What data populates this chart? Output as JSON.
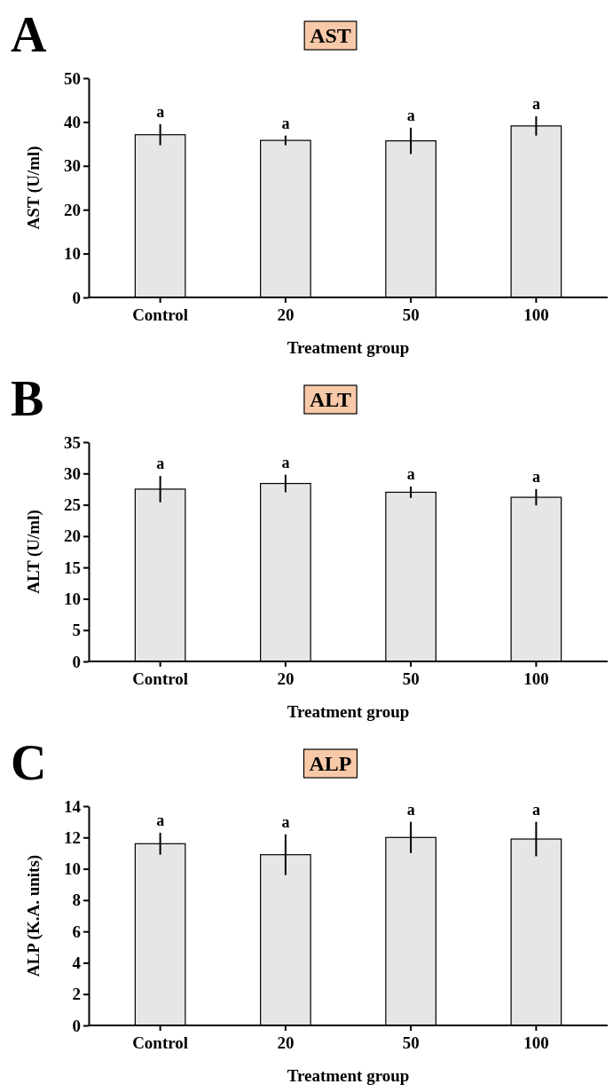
{
  "chart_data": [
    {
      "type": "bar",
      "title": "AST",
      "xlabel": "Treatment group",
      "ylabel": "AST (U/ml)",
      "categories": [
        "Control",
        "20",
        "50",
        "100"
      ],
      "values": [
        37.1,
        35.8,
        35.7,
        39.1
      ],
      "errors": [
        2.4,
        1.1,
        3.0,
        2.2
      ],
      "color": "#e6e6e6",
      "ylim": [
        0,
        50
      ],
      "yticks": [
        0,
        10,
        20,
        30,
        40,
        50
      ],
      "grid": false,
      "annotations": [
        {
          "text": "a",
          "x": "Control",
          "y": 39.5
        },
        {
          "text": "a",
          "x": "20",
          "y": 36.9
        },
        {
          "text": "a",
          "x": "50",
          "y": 38.7
        },
        {
          "text": "a",
          "x": "100",
          "y": 41.3
        },
        "A"
      ]
    },
    {
      "type": "bar",
      "title": "ALT",
      "xlabel": "Treatment group",
      "ylabel": "ALT (U/ml)",
      "categories": [
        "Control",
        "20",
        "50",
        "100"
      ],
      "values": [
        27.5,
        28.4,
        27.0,
        26.2
      ],
      "errors": [
        2.1,
        1.4,
        0.9,
        1.3
      ],
      "color": "#e6e6e6",
      "ylim": [
        0,
        35
      ],
      "yticks": [
        0,
        5,
        10,
        15,
        20,
        25,
        30,
        35
      ],
      "grid": false,
      "annotations": [
        {
          "text": "a",
          "x": "Control",
          "y": 29.6
        },
        {
          "text": "a",
          "x": "20",
          "y": 29.8
        },
        {
          "text": "a",
          "x": "50",
          "y": 27.9
        },
        {
          "text": "a",
          "x": "100",
          "y": 27.5
        },
        "B"
      ]
    },
    {
      "type": "bar",
      "title": "ALP",
      "xlabel": "Treatment group",
      "ylabel": "ALP (K.A. units)",
      "categories": [
        "Control",
        "20",
        "50",
        "100"
      ],
      "values": [
        11.6,
        10.9,
        12.0,
        11.9
      ],
      "errors": [
        0.7,
        1.3,
        1.0,
        1.1
      ],
      "color": "#e6e6e6",
      "ylim": [
        0,
        14
      ],
      "yticks": [
        0,
        2,
        4,
        6,
        8,
        10,
        12,
        14
      ],
      "grid": false,
      "annotations": [
        {
          "text": "a",
          "x": "Control",
          "y": 12.3
        },
        {
          "text": "a",
          "x": "20",
          "y": 12.2
        },
        {
          "text": "a",
          "x": "50",
          "y": 13.0
        },
        {
          "text": "a",
          "x": "100",
          "y": 13.0
        },
        "C"
      ]
    }
  ]
}
